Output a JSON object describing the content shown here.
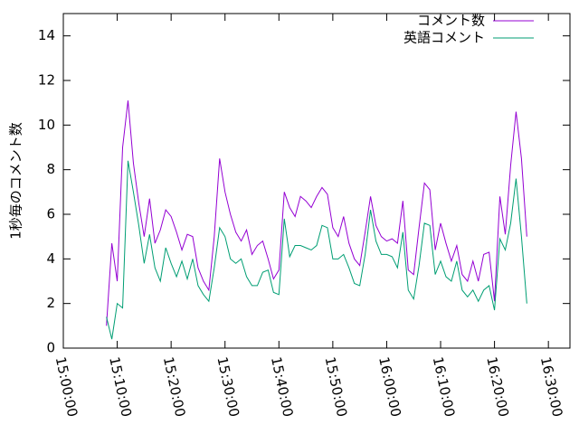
{
  "chart_data": {
    "type": "line",
    "ylabel": "1秒毎のコメント数",
    "x": [
      "15:08:00",
      "15:09:00",
      "15:10:00",
      "15:11:00",
      "15:12:00",
      "15:13:00",
      "15:14:00",
      "15:15:00",
      "15:16:00",
      "15:17:00",
      "15:18:00",
      "15:19:00",
      "15:20:00",
      "15:21:00",
      "15:22:00",
      "15:23:00",
      "15:24:00",
      "15:25:00",
      "15:26:00",
      "15:27:00",
      "15:28:00",
      "15:29:00",
      "15:30:00",
      "15:31:00",
      "15:32:00",
      "15:33:00",
      "15:34:00",
      "15:35:00",
      "15:36:00",
      "15:37:00",
      "15:38:00",
      "15:39:00",
      "15:40:00",
      "15:41:00",
      "15:42:00",
      "15:43:00",
      "15:44:00",
      "15:45:00",
      "15:46:00",
      "15:47:00",
      "15:48:00",
      "15:49:00",
      "15:50:00",
      "15:51:00",
      "15:52:00",
      "15:53:00",
      "15:54:00",
      "15:55:00",
      "15:56:00",
      "15:57:00",
      "15:58:00",
      "15:59:00",
      "16:00:00",
      "16:01:00",
      "16:02:00",
      "16:03:00",
      "16:04:00",
      "16:05:00",
      "16:06:00",
      "16:07:00",
      "16:08:00",
      "16:09:00",
      "16:10:00",
      "16:11:00",
      "16:12:00",
      "16:13:00",
      "16:14:00",
      "16:15:00",
      "16:16:00",
      "16:17:00",
      "16:18:00",
      "16:19:00",
      "16:20:00",
      "16:21:00",
      "16:22:00",
      "16:23:00",
      "16:24:00",
      "16:25:00",
      "16:26:00"
    ],
    "series": [
      {
        "name": "コメント数",
        "color": "#9400d3",
        "values": [
          1.0,
          4.7,
          3.0,
          9.0,
          11.1,
          8.3,
          6.5,
          5.0,
          6.7,
          4.7,
          5.3,
          6.2,
          5.9,
          5.2,
          4.4,
          5.1,
          5.0,
          3.6,
          3.0,
          2.6,
          5.0,
          8.5,
          7.0,
          6.0,
          5.2,
          4.8,
          5.3,
          4.2,
          4.6,
          4.8,
          4.0,
          3.1,
          3.5,
          7.0,
          6.3,
          5.9,
          6.8,
          6.6,
          6.3,
          6.8,
          7.2,
          6.9,
          5.4,
          5.0,
          5.9,
          4.7,
          4.0,
          3.7,
          5.2,
          6.8,
          5.5,
          5.0,
          4.8,
          4.9,
          4.7,
          6.6,
          3.5,
          3.3,
          5.4,
          7.4,
          7.1,
          4.4,
          5.6,
          4.7,
          3.9,
          4.6,
          3.3,
          3.0,
          3.9,
          3.0,
          4.2,
          4.3,
          2.1,
          6.8,
          5.1,
          8.2,
          10.6,
          8.5,
          5.0
        ]
      },
      {
        "name": "英語コメント",
        "color": "#009e73",
        "values": [
          1.4,
          0.4,
          2.0,
          1.8,
          8.4,
          7.0,
          5.5,
          3.8,
          5.1,
          3.6,
          3.0,
          4.5,
          3.8,
          3.2,
          3.9,
          3.1,
          4.0,
          2.8,
          2.4,
          2.1,
          3.6,
          5.4,
          5.0,
          4.0,
          3.8,
          4.0,
          3.2,
          2.8,
          2.8,
          3.4,
          3.5,
          2.5,
          2.4,
          5.8,
          4.1,
          4.6,
          4.6,
          4.5,
          4.4,
          4.6,
          5.5,
          5.4,
          4.0,
          4.0,
          4.2,
          3.6,
          2.9,
          2.8,
          4.2,
          6.2,
          4.8,
          4.2,
          4.2,
          4.1,
          3.6,
          5.2,
          2.6,
          2.2,
          3.7,
          5.6,
          5.5,
          3.3,
          3.9,
          3.2,
          3.0,
          3.9,
          2.6,
          2.3,
          2.6,
          2.1,
          2.6,
          2.8,
          1.7,
          4.9,
          4.4,
          5.6,
          7.6,
          5.0,
          2.0
        ]
      }
    ],
    "xlim": [
      "15:00:00",
      "16:34:00"
    ],
    "xticks": [
      "15:00:00",
      "15:10:00",
      "15:20:00",
      "15:30:00",
      "15:40:00",
      "15:50:00",
      "16:00:00",
      "16:10:00",
      "16:20:00",
      "16:30:00"
    ],
    "ylim": [
      0,
      15
    ],
    "yticks": [
      0,
      2,
      4,
      6,
      8,
      10,
      12,
      14
    ],
    "legend": "top-right",
    "grid": false
  }
}
